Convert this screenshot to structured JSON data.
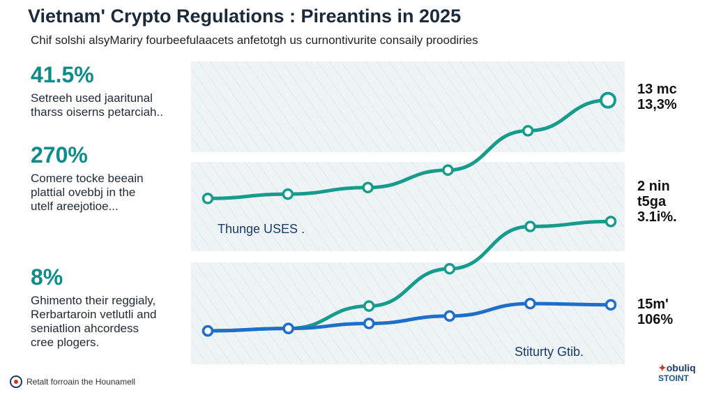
{
  "header": {
    "title": "Vietnam' Crypto Regulations : Pireantins in 2025",
    "subtitle": "Chif solshi alsyMariry fourbeefulaacets anfetotgh us curnontivurite consaily proodiries"
  },
  "stats": [
    {
      "value": "41.5%",
      "desc_line1": "Setreeh used jaaritunal",
      "desc_line2": "tharss oiserns petarciah.."
    },
    {
      "value": "270%",
      "desc_line1": "Comere tocke beeain",
      "desc_line2": "plattial ovebbj in the",
      "desc_line3": "utelf areejotioe..."
    },
    {
      "value": "8%",
      "desc_line1": "Ghimento their reggialy,",
      "desc_line2": "Rerbartaroin vetlutli and",
      "desc_line3": "seniatlion ahcordess",
      "desc_line4": "cree plogers."
    }
  ],
  "right_labels": [
    {
      "line1": "13 mc",
      "line2": "13,3%"
    },
    {
      "line1": "2 nin",
      "line2": "t5ga",
      "line3": "3.1i%."
    },
    {
      "line1": "15m'",
      "line2": "106%"
    }
  ],
  "chart_data": [
    {
      "type": "line",
      "x": [
        1,
        2,
        3,
        4,
        5,
        6
      ],
      "series": [
        {
          "values": [
            1.0,
            1.4,
            2.0,
            3.6,
            7.2,
            10.0
          ],
          "color": "#169c8c"
        }
      ],
      "ylim": [
        0,
        11
      ]
    },
    {
      "type": "line",
      "x": [
        1,
        2,
        3,
        4,
        5,
        6
      ],
      "series": [
        {
          "values": [
            1.0,
            1.2,
            3.0,
            6.0,
            9.4,
            9.8
          ],
          "color": "#169c8c"
        },
        {
          "values": [
            1.0,
            1.2,
            1.6,
            2.2,
            3.2,
            3.1
          ],
          "color": "#1f6fc8"
        }
      ],
      "ylim": [
        0,
        11
      ]
    }
  ],
  "annotations": {
    "middle_panel": "Thunge USES .",
    "bottom_panel": "Stiturty Gtib."
  },
  "footer": {
    "text": "Retalt forroain the Hounamell"
  },
  "brand": {
    "line1": "obuliq",
    "line2": "STOINT"
  }
}
